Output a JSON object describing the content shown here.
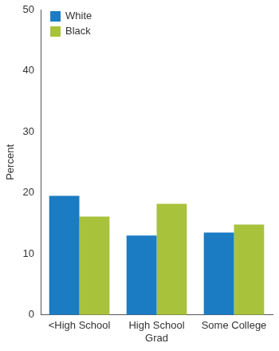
{
  "chart_data": {
    "type": "bar",
    "categories": [
      "<High School",
      "High School Grad",
      "Some College"
    ],
    "series": [
      {
        "name": "White",
        "color": "#1b7cc4",
        "values": [
          19.5,
          13.0,
          13.5
        ]
      },
      {
        "name": "Black",
        "color": "#a8c23c",
        "values": [
          16.1,
          18.2,
          14.8
        ]
      }
    ],
    "y_label": "Percent",
    "ylim": [
      0,
      50
    ],
    "yticks": [
      0,
      10,
      20,
      30,
      40,
      50
    ],
    "grid": false,
    "legend": "top-left"
  }
}
